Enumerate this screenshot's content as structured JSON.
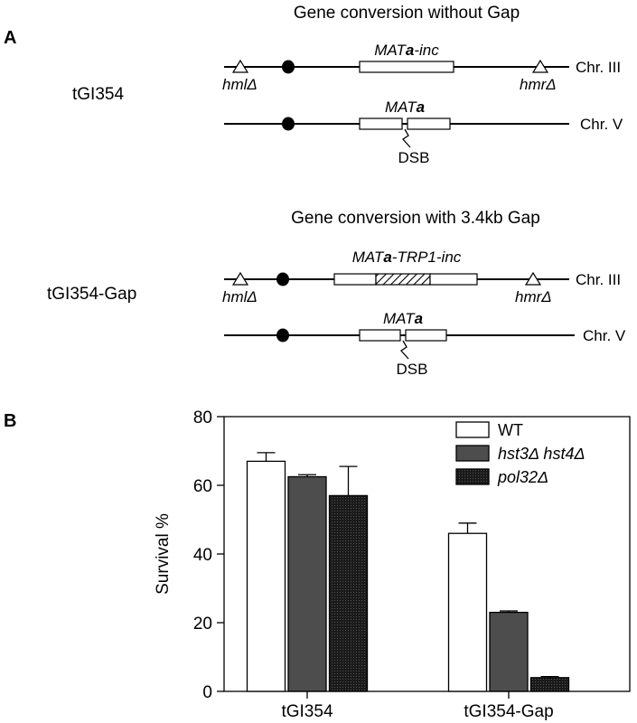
{
  "panel_a": {
    "label": "A",
    "top": {
      "title": "Gene conversion without Gap",
      "strain": "tGI354",
      "chr3_label": "Chr. III",
      "chr5_label": "Chr. V",
      "donor_prefix": "MAT",
      "donor_bold": "a",
      "donor_suffix": "-inc",
      "recipient_prefix": "MAT",
      "recipient_bold": "a",
      "hml": "hmlΔ",
      "hmr": "hmrΔ",
      "dsb": "DSB"
    },
    "bottom": {
      "title": "Gene conversion with 3.4kb Gap",
      "strain": "tGI354-Gap",
      "chr3_label": "Chr. III",
      "chr5_label": "Chr. V",
      "donor_prefix": "MAT",
      "donor_bold": "a",
      "donor_suffix": "-TRP1-inc",
      "recipient_prefix": "MAT",
      "recipient_bold": "a",
      "hml": "hmlΔ",
      "hmr": "hmrΔ",
      "dsb": "DSB"
    }
  },
  "panel_b": {
    "label": "B"
  },
  "chart_data": {
    "type": "bar",
    "ylabel": "Survival %",
    "xlabel": "",
    "ylim": [
      0,
      80
    ],
    "yticks": [
      0,
      20,
      40,
      60,
      80
    ],
    "categories": [
      "tGI354",
      "tGI354-Gap"
    ],
    "series": [
      {
        "name": "WT",
        "values": [
          67,
          46
        ],
        "errors": [
          2.5,
          3
        ],
        "fill": "#ffffff"
      },
      {
        "name": "hst3Δ hst4Δ",
        "values": [
          62.5,
          23
        ],
        "errors": [
          0.6,
          0.4
        ],
        "fill": "#4d4d4d"
      },
      {
        "name": "pol32Δ",
        "values": [
          57,
          4
        ],
        "errors": [
          8.5,
          0.3
        ],
        "fill": "#111111"
      }
    ],
    "legend": "top-right"
  }
}
